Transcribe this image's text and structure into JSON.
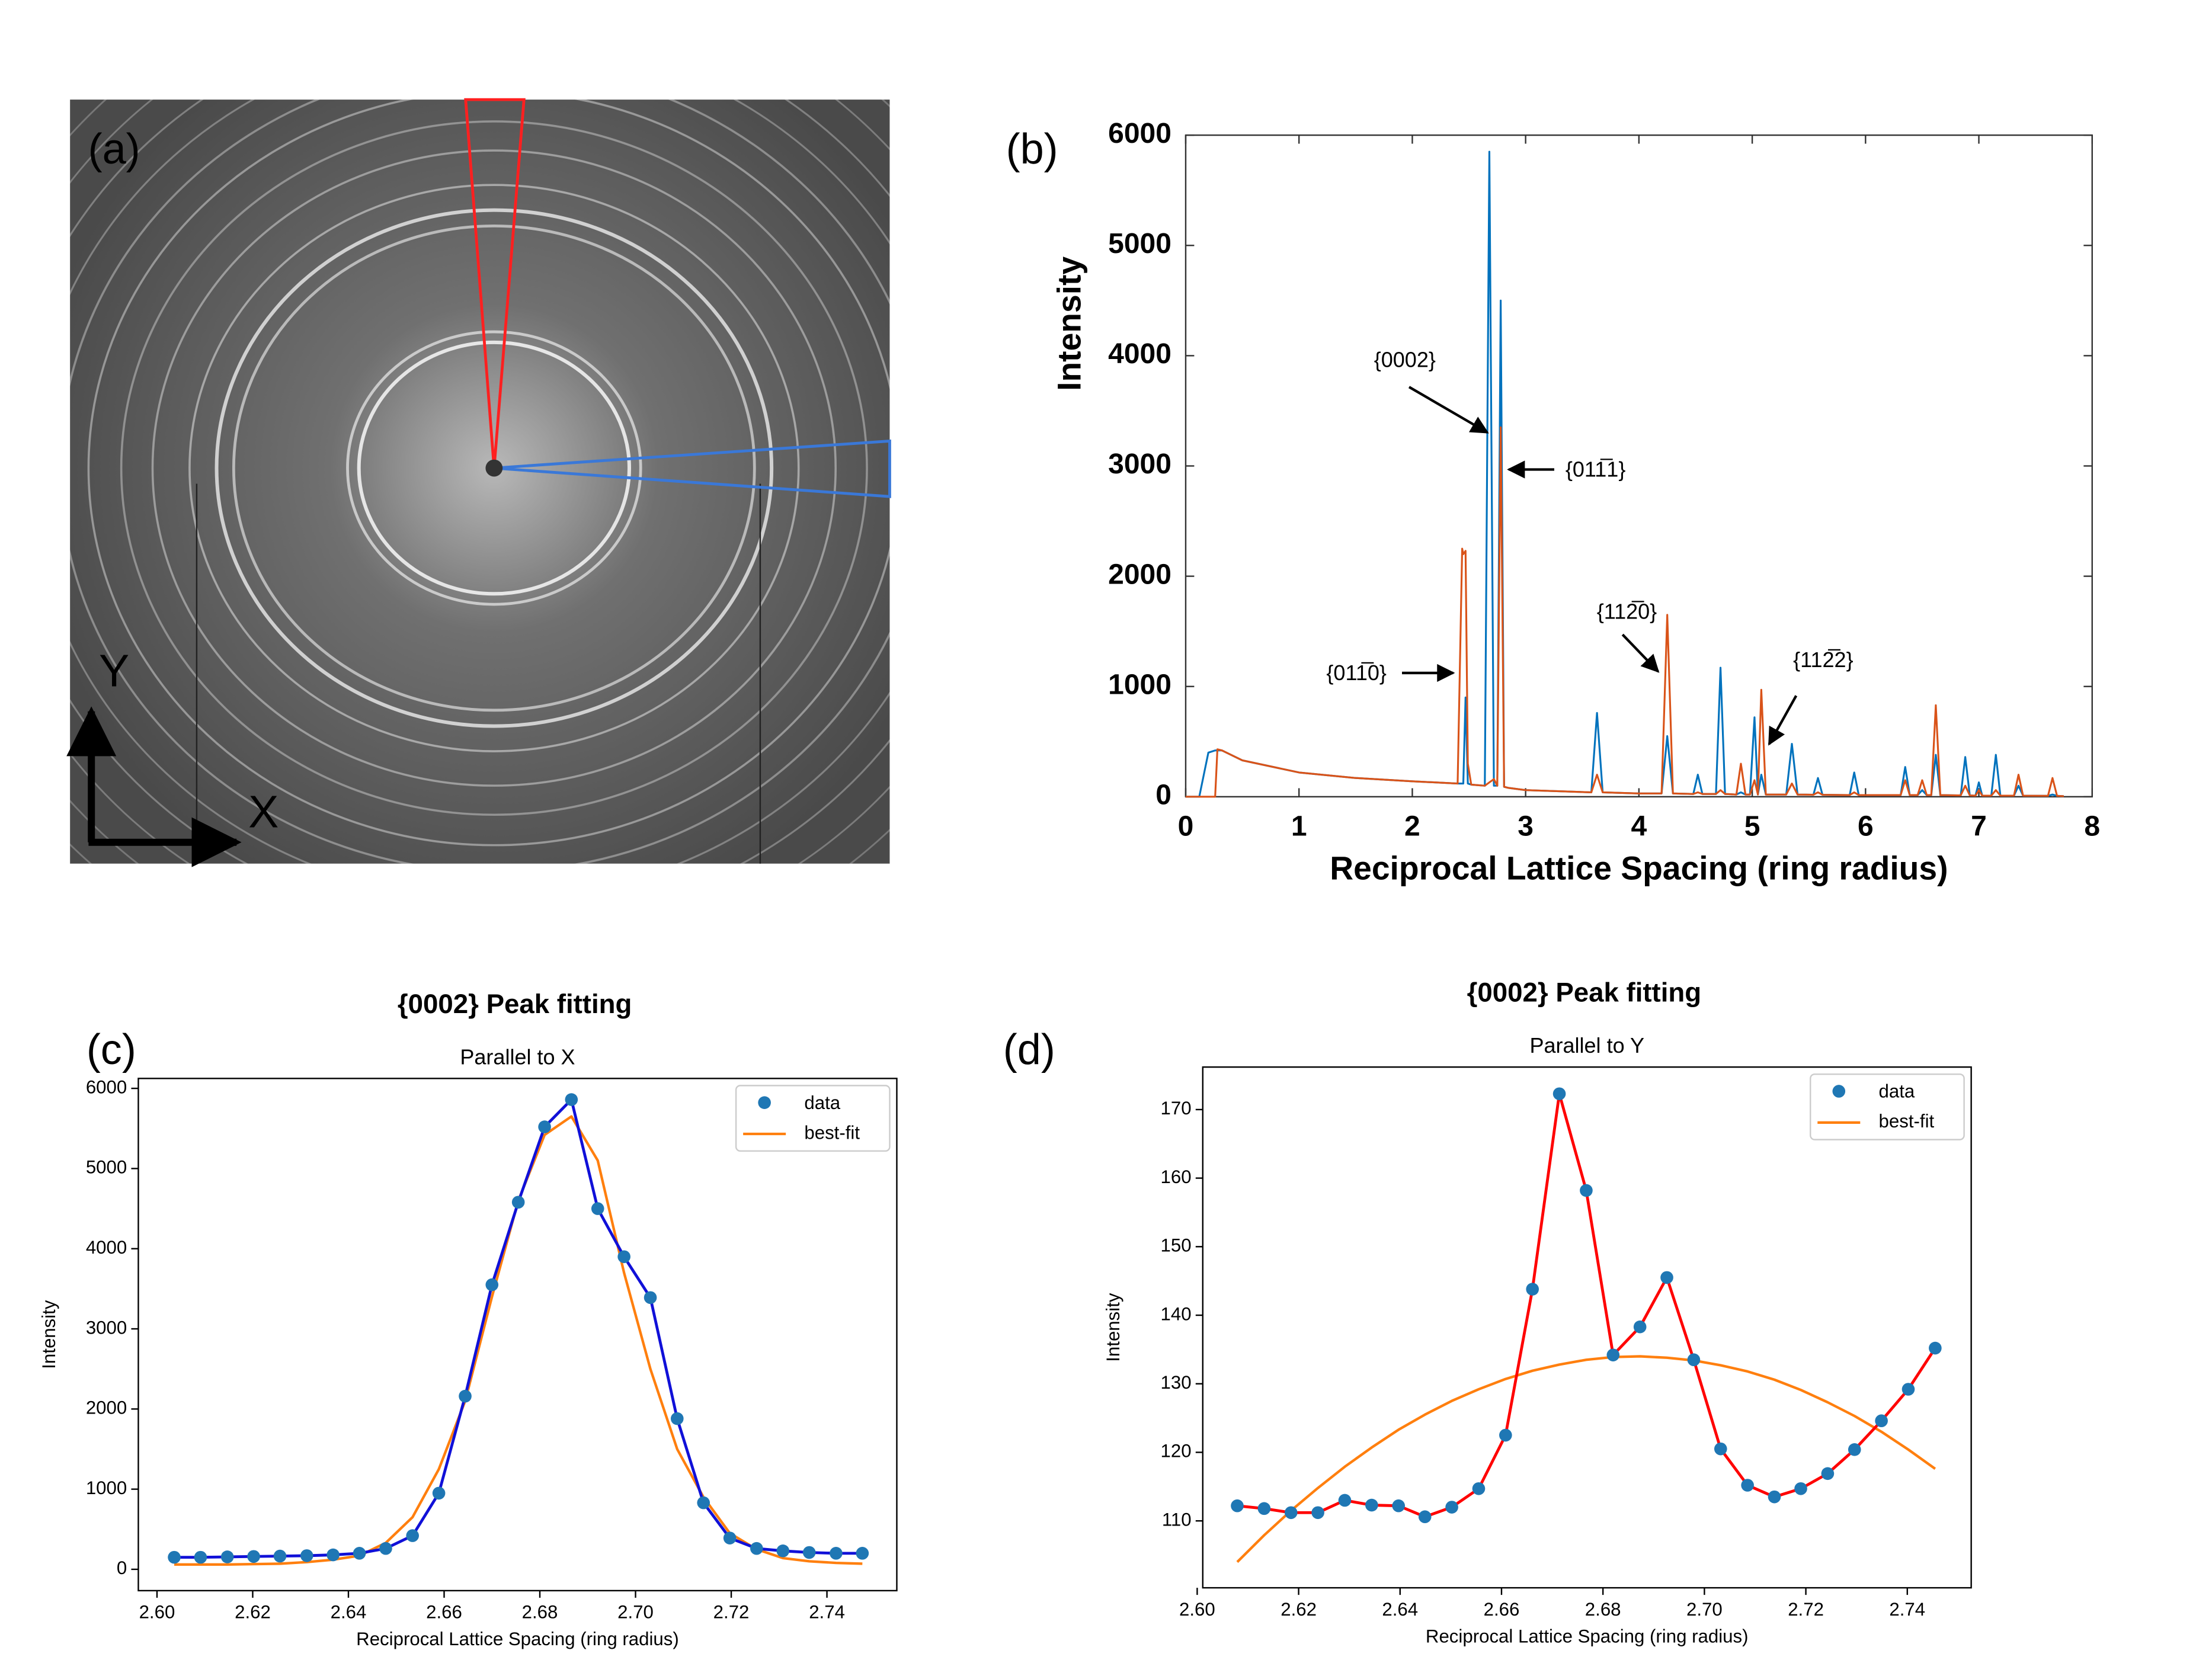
{
  "chart_data": [
    {
      "type": "image",
      "panel_label": "(a)",
      "axis_labels": [
        "X",
        "Y"
      ]
    },
    {
      "type": "line",
      "panel_label": "(b)",
      "xlabel": "Reciprocal Lattice Spacing (ring radius)",
      "ylabel": "Intensity",
      "xlim": [
        0,
        8
      ],
      "ylim": [
        0,
        6000
      ],
      "xticks": [
        0,
        1,
        2,
        3,
        4,
        5,
        6,
        7,
        8
      ],
      "yticks": [
        0,
        1000,
        2000,
        3000,
        4000,
        5000,
        6000
      ],
      "annotations": [
        "{0002}",
        "{011̅1}",
        "{112̅0}",
        "{011̅0}",
        "{112̅2}"
      ],
      "x": [
        0,
        0.12,
        0.2,
        0.26,
        0.28,
        0.32,
        0.5,
        1.0,
        1.5,
        2.0,
        2.4,
        2.44,
        2.45,
        2.47,
        2.49,
        2.52,
        2.64,
        2.68,
        2.72,
        2.75,
        2.78,
        2.81,
        2.85,
        3.0,
        3.58,
        3.63,
        3.68,
        4.0,
        4.2,
        4.25,
        4.3,
        4.48,
        4.52,
        4.56,
        4.68,
        4.72,
        4.76,
        4.86,
        4.9,
        4.94,
        4.98,
        5.02,
        5.05,
        5.08,
        5.12,
        5.3,
        5.35,
        5.4,
        5.54,
        5.58,
        5.62,
        5.86,
        5.9,
        5.94,
        6.31,
        6.35,
        6.39,
        6.46,
        6.5,
        6.54,
        6.58,
        6.62,
        6.66,
        6.84,
        6.88,
        6.92,
        6.97,
        7.0,
        7.03,
        7.11,
        7.15,
        7.19,
        7.31,
        7.35,
        7.39,
        7.61,
        7.65,
        7.69,
        7.75
      ],
      "series": [
        {
          "color": "#0072bd",
          "values": [
            0,
            0,
            400,
            420,
            420,
            420,
            330,
            220,
            170,
            140,
            120,
            120,
            120,
            900,
            120,
            110,
            100,
            5850,
            100,
            100,
            4500,
            90,
            80,
            60,
            40,
            760,
            40,
            30,
            30,
            550,
            30,
            25,
            200,
            25,
            25,
            1170,
            25,
            20,
            40,
            20,
            20,
            720,
            20,
            200,
            20,
            20,
            480,
            20,
            18,
            170,
            18,
            15,
            220,
            15,
            15,
            270,
            15,
            15,
            60,
            15,
            15,
            380,
            15,
            12,
            360,
            12,
            10,
            130,
            10,
            10,
            380,
            10,
            10,
            100,
            10,
            8,
            20,
            8,
            5
          ]
        },
        {
          "color": "#d95319",
          "values": [
            0,
            0,
            0,
            0,
            430,
            420,
            330,
            220,
            170,
            140,
            120,
            2250,
            2200,
            2230,
            300,
            110,
            100,
            130,
            160,
            100,
            3350,
            90,
            80,
            60,
            40,
            200,
            40,
            30,
            30,
            1650,
            30,
            25,
            40,
            25,
            25,
            60,
            25,
            20,
            300,
            20,
            20,
            150,
            20,
            970,
            20,
            20,
            120,
            20,
            18,
            40,
            18,
            15,
            40,
            15,
            15,
            150,
            15,
            15,
            150,
            15,
            15,
            830,
            15,
            12,
            100,
            12,
            10,
            60,
            10,
            10,
            60,
            10,
            10,
            200,
            10,
            8,
            170,
            8,
            5
          ]
        }
      ]
    },
    {
      "type": "scatter",
      "panel_label": "(c)",
      "title": "{0002} Peak fitting",
      "subtitle": "Parallel to X",
      "xlabel": "Reciprocal Lattice Spacing (ring radius)",
      "ylabel": "Intensity",
      "xlim": [
        2.5961,
        2.7546
      ],
      "ylim": [
        -266,
        6124
      ],
      "xticks": [
        {
          "value": 2.6,
          "label": "2.60"
        },
        2.62,
        2.64,
        2.66,
        2.68,
        {
          "value": 2.7,
          "label": "2.70"
        },
        2.72,
        2.74
      ],
      "yticks": [
        0,
        1000,
        2000,
        3000,
        4000,
        5000,
        6000
      ],
      "legend": "upper right",
      "data_line_color": "#1010d8",
      "x": [
        2.6036,
        2.6091,
        2.6147,
        2.6202,
        2.6257,
        2.6313,
        2.6368,
        2.6423,
        2.6478,
        2.6534,
        2.6589,
        2.6644,
        2.67,
        2.6755,
        2.681,
        2.6866,
        2.6921,
        2.6976,
        2.7031,
        2.7087,
        2.7142,
        2.7197,
        2.7253,
        2.7308,
        2.7363,
        2.7419,
        2.7474
      ],
      "series": [
        {
          "name": "data",
          "color": "#1f77b4",
          "values": [
            150,
            150,
            155,
            160,
            165,
            170,
            180,
            200,
            260,
            420,
            950,
            2160,
            3550,
            4580,
            5520,
            5860,
            4500,
            3900,
            3390,
            1880,
            830,
            390,
            260,
            230,
            210,
            200,
            200
          ]
        },
        {
          "name": "best-fit",
          "color": "#ff7f0e",
          "values": [
            60,
            60,
            60,
            65,
            70,
            90,
            120,
            170,
            330,
            650,
            1250,
            2100,
            3400,
            4600,
            5420,
            5650,
            5100,
            3700,
            2500,
            1500,
            900,
            450,
            250,
            140,
            100,
            80,
            70
          ]
        }
      ]
    },
    {
      "type": "scatter",
      "panel_label": "(d)",
      "title": "{0002} Peak fitting",
      "subtitle": "Parallel to Y",
      "xlabel": "Reciprocal Lattice Spacing (ring radius)",
      "ylabel": "Intensity",
      "xlim": [
        2.6011,
        2.7526
      ],
      "ylim": [
        100.24,
        176.2
      ],
      "xticks": [
        {
          "value": 2.6,
          "label": "2.60"
        },
        2.62,
        2.64,
        2.66,
        2.68,
        {
          "value": 2.7,
          "label": "2.70"
        },
        2.72,
        2.74
      ],
      "yticks": [
        110,
        120,
        130,
        140,
        150,
        160,
        170
      ],
      "legend": "upper right",
      "data_line_color": "#ff0000",
      "x": [
        2.6079,
        2.6132,
        2.6185,
        2.6238,
        2.6291,
        2.6344,
        2.6397,
        2.6449,
        2.6502,
        2.6555,
        2.6608,
        2.6661,
        2.6714,
        2.6767,
        2.682,
        2.6873,
        2.6926,
        2.6979,
        2.7032,
        2.7085,
        2.7138,
        2.719,
        2.7243,
        2.7296,
        2.7349,
        2.7402,
        2.7455
      ],
      "series": [
        {
          "name": "data",
          "color": "#1f77b4",
          "values": [
            112.2,
            111.8,
            111.2,
            111.2,
            113,
            112.3,
            112.2,
            110.6,
            112,
            114.7,
            122.5,
            143.8,
            172.3,
            158.2,
            134.2,
            138.3,
            145.5,
            133.5,
            120.5,
            115.2,
            113.5,
            114.7,
            116.9,
            120.4,
            124.6,
            129.2,
            135.2
          ]
        },
        {
          "name": "best-fit",
          "color": "#ff7f0e",
          "values": [
            104.0,
            107.9,
            111.5,
            114.8,
            117.9,
            120.7,
            123.3,
            125.5,
            127.5,
            129.2,
            130.7,
            131.9,
            132.8,
            133.5,
            133.9,
            134.0,
            133.8,
            133.4,
            132.7,
            131.8,
            130.6,
            129.1,
            127.3,
            125.3,
            123.0,
            120.4,
            117.6
          ]
        }
      ]
    }
  ]
}
